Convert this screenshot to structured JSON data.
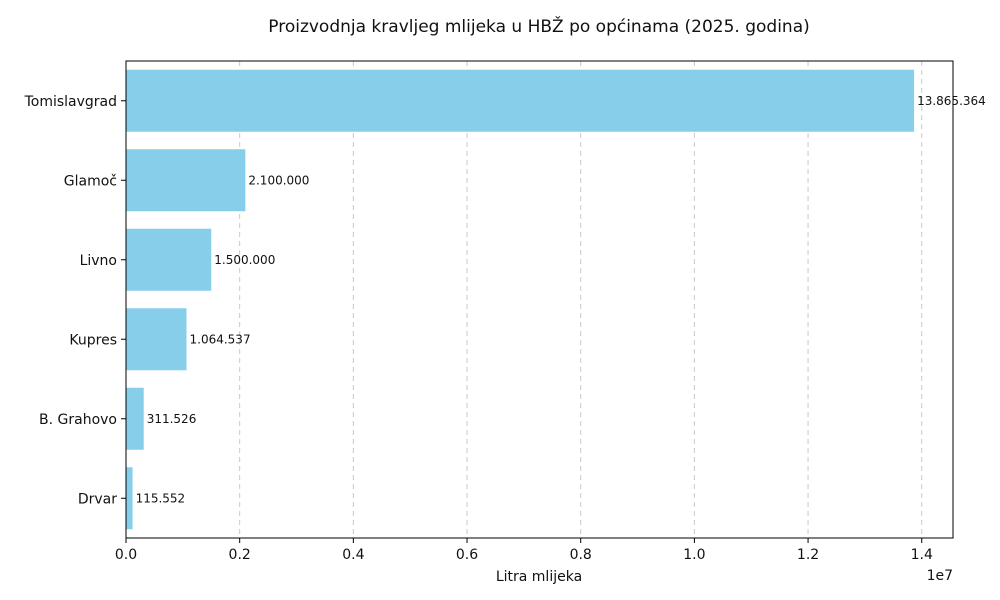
{
  "chart_data": {
    "type": "bar",
    "orientation": "horizontal",
    "title": "Proizvodnja kravljeg mlijeka u HBŽ po općinama (2025. godina)",
    "xlabel": "Litra mlijeka",
    "ylabel": "",
    "x_offset_label": "1e7",
    "categories": [
      "Tomislavgrad",
      "Glamoč",
      "Livno",
      "Kupres",
      "B. Grahovo",
      "Drvar"
    ],
    "values": [
      13865364,
      2100000,
      1500000,
      1064537,
      311526,
      115552
    ],
    "value_labels": [
      "13.865.364",
      "2.100.000",
      "1.500.000",
      "1.064.537",
      "311.526",
      "115.552"
    ],
    "xlim": [
      0,
      14550000
    ],
    "x_ticks": [
      0,
      2000000,
      4000000,
      6000000,
      8000000,
      10000000,
      12000000,
      14000000
    ],
    "x_tick_labels": [
      "0.0",
      "0.2",
      "0.4",
      "0.6",
      "0.8",
      "1.0",
      "1.2",
      "1.4"
    ],
    "grid": "x, dashed",
    "bar_color": "#87ceeb"
  }
}
